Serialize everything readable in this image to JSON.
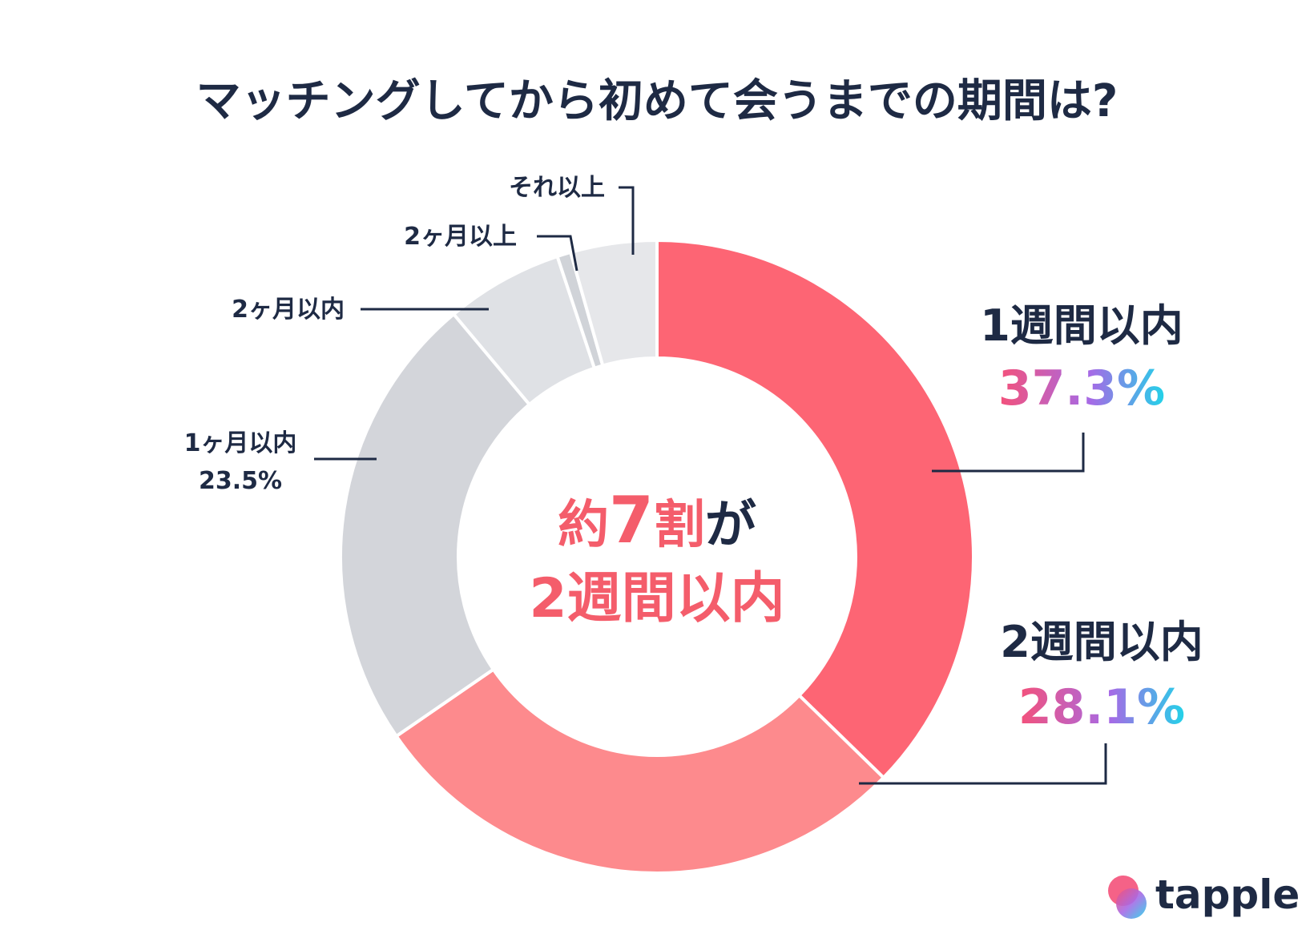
{
  "chart_data": {
    "type": "pie",
    "title": "マッチングしてから初めて会うまでの期間は?",
    "categories": [
      "1週間以内",
      "2週間以内",
      "1ヶ月以内",
      "2ヶ月以内",
      "2ヶ月以上",
      "それ以上"
    ],
    "values": [
      37.3,
      28.1,
      23.5,
      6.0,
      0.7,
      4.4
    ],
    "labeled_values": {
      "w1": "37.3%",
      "w2": "28.1%",
      "m1": "23.5%"
    },
    "colors": [
      "#fd6574",
      "#fd8a8d",
      "#d3d5da",
      "#dfe1e5",
      "#d0d3d8",
      "#e6e7ea"
    ],
    "annotation": {
      "line1_prefix": "約",
      "line1_number": "7",
      "line1_mid": "割",
      "line1_suffix": "が",
      "line2": "2週間以内"
    }
  },
  "labels": {
    "w1": "1週間以内",
    "w2": "2週間以内",
    "m1": "1ヶ月以内",
    "m2": "2ヶ月以内",
    "over2m": "2ヶ月以上",
    "more": "それ以上"
  },
  "brand": {
    "name": "tapple",
    "gradient_colors": [
      "#f4517a",
      "#a66ae6",
      "#22d3e8"
    ]
  }
}
